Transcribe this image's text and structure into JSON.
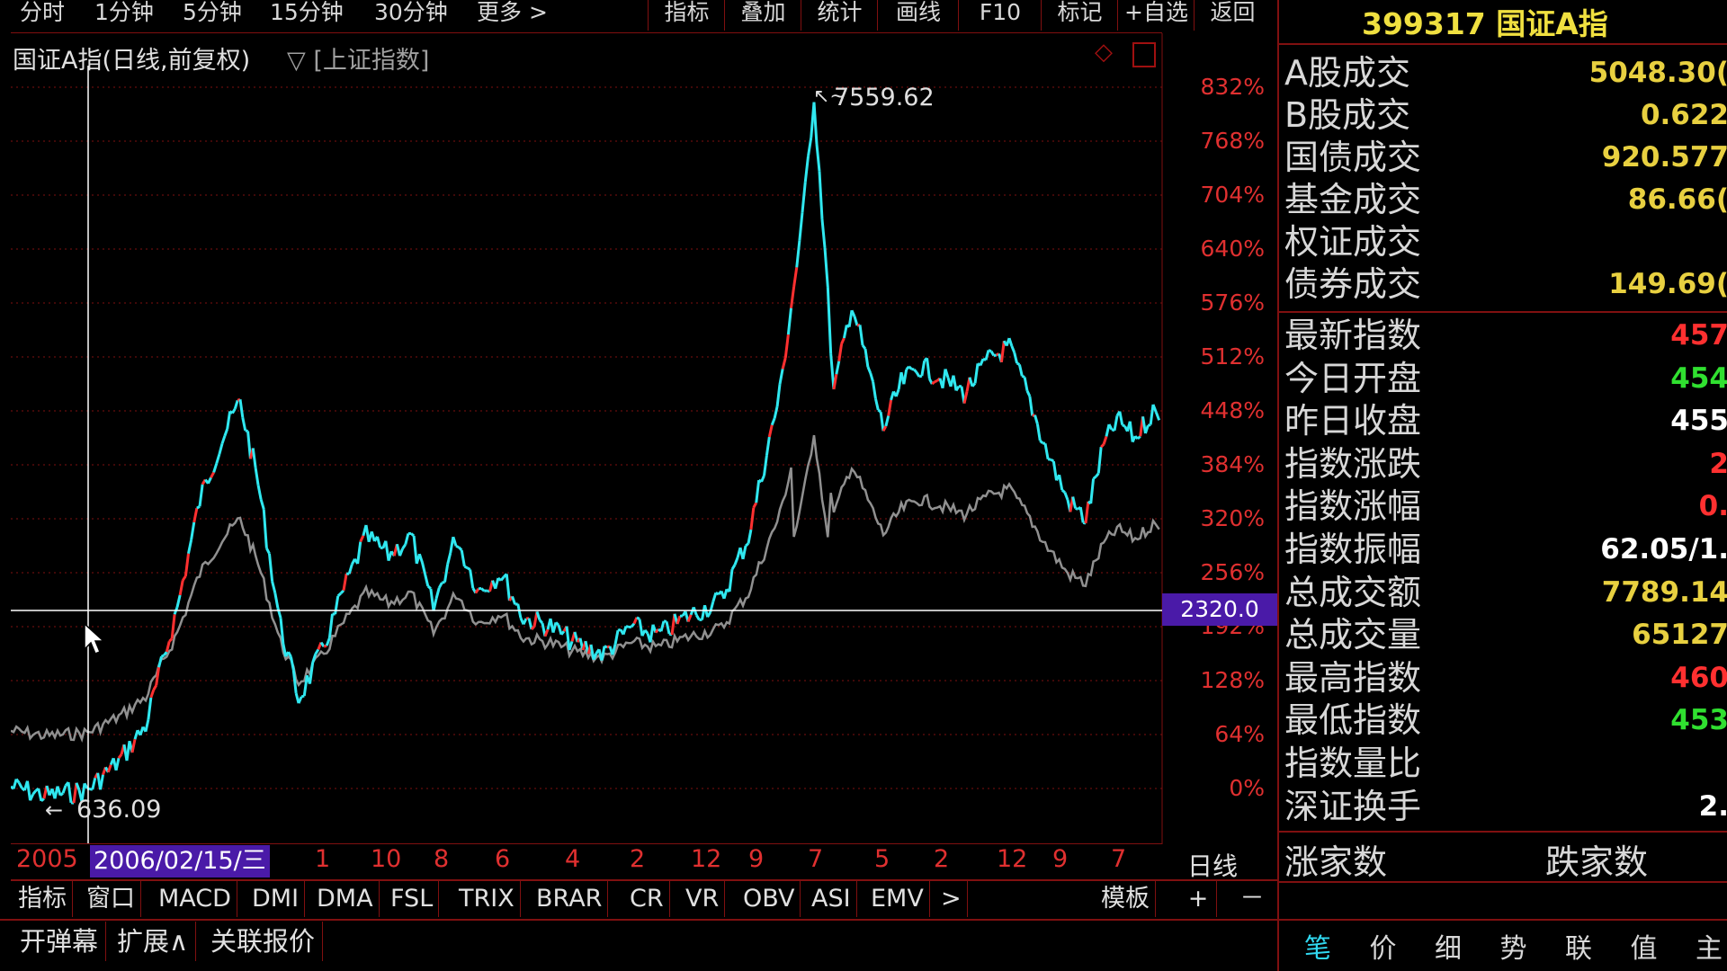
{
  "toolbar": {
    "periods": [
      "分时",
      "1分钟",
      "5分钟",
      "15分钟",
      "30分钟",
      "更多 >"
    ],
    "buttons": [
      "指标",
      "叠加",
      "统计",
      "画线",
      "F10",
      "标记",
      "+自选",
      "返回"
    ]
  },
  "chart": {
    "title": "国证A指(日线,前复权)",
    "overlay": "▽ [上证指数]",
    "high_label": "7559.62",
    "low_label": "636.09",
    "cursor_value": "2320.0",
    "cursor_date": "2006/02/15/三",
    "start_year": "2005",
    "axis_labels": [
      "832%",
      "768%",
      "704%",
      "640%",
      "576%",
      "512%",
      "448%",
      "384%",
      "320%",
      "256%",
      "192%",
      "128%",
      "64%",
      "0%"
    ],
    "date_ticks": [
      "1",
      "10",
      "8",
      "6",
      "4",
      "2",
      "12",
      "9",
      "7",
      "5",
      "2",
      "12",
      "9",
      "7"
    ],
    "period_label": "日线",
    "colors": {
      "up": "#ff3030",
      "down": "#30e8f0",
      "overlay": "#909090",
      "grid": "#801010"
    }
  },
  "indicator_tabs": [
    "指标",
    "窗口",
    "MACD",
    "DMI",
    "DMA",
    "FSL",
    "TRIX",
    "BRAR",
    "CR",
    "VR",
    "OBV",
    "ASI",
    "EMV",
    ">"
  ],
  "template_label": "模板",
  "plus_label": "+",
  "minus_label": "－",
  "bottom_tabs": [
    "开弹幕",
    "扩展∧",
    "关联报价"
  ],
  "right_panel": {
    "header": "399317 国证A指",
    "trade_rows": [
      {
        "label": "A股成交",
        "value": "5048.30("
      },
      {
        "label": "B股成交",
        "value": "0.622"
      },
      {
        "label": "国债成交",
        "value": "920.577"
      },
      {
        "label": "基金成交",
        "value": "86.66("
      },
      {
        "label": "权证成交",
        "value": ""
      },
      {
        "label": "债券成交",
        "value": "149.69("
      }
    ],
    "index_rows": [
      {
        "label": "最新指数",
        "value": "457",
        "color": "#ff3030"
      },
      {
        "label": "今日开盘",
        "value": "454",
        "color": "#30e030"
      },
      {
        "label": "昨日收盘",
        "value": "455",
        "color": "#ffffff"
      },
      {
        "label": "指数涨跌",
        "value": "2",
        "color": "#ff3030"
      },
      {
        "label": "指数涨幅",
        "value": "0.",
        "color": "#ff3030"
      },
      {
        "label": "指数振幅",
        "value": "62.05/1.",
        "color": "#ffffff"
      },
      {
        "label": "总成交额",
        "value": "7789.14",
        "color": "#e8d040"
      },
      {
        "label": "总成交量",
        "value": "65127",
        "color": "#e8d040"
      },
      {
        "label": "最高指数",
        "value": "460",
        "color": "#ff3030"
      },
      {
        "label": "最低指数",
        "value": "453",
        "color": "#30e030"
      },
      {
        "label": "指数量比",
        "value": "",
        "color": "#ffffff"
      },
      {
        "label": "深证换手",
        "value": "2.",
        "color": "#ffffff"
      }
    ],
    "breadth": {
      "up_label": "涨家数",
      "down_label": "跌家数"
    },
    "tabs": [
      "笔",
      "价",
      "细",
      "势",
      "联",
      "值",
      "主"
    ]
  }
}
